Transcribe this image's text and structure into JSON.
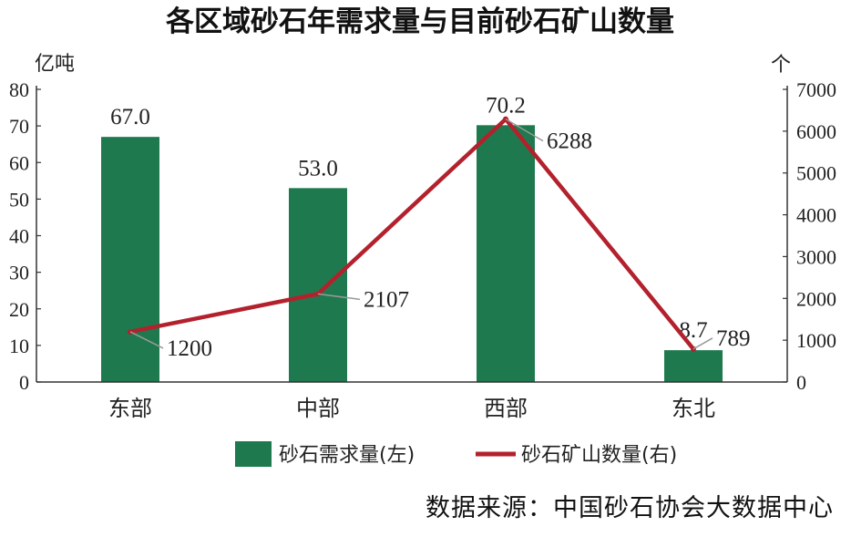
{
  "chart_data": {
    "type": "bar",
    "title": "各区域砂石年需求量与目前砂石矿山数量",
    "categories": [
      "东部",
      "中部",
      "西部",
      "东北"
    ],
    "left_unit": "亿吨",
    "right_unit": "个",
    "left_ylim": [
      0,
      80
    ],
    "left_ticks": [
      0,
      10,
      20,
      30,
      40,
      50,
      60,
      70,
      80
    ],
    "right_ylim": [
      0,
      7000
    ],
    "right_ticks": [
      0,
      1000,
      2000,
      3000,
      4000,
      5000,
      6000,
      7000
    ],
    "series": [
      {
        "name": "砂石需求量(左)",
        "type": "bar",
        "axis": "left",
        "values": [
          67.0,
          53.0,
          70.2,
          8.7
        ],
        "labels": [
          "67.0",
          "53.0",
          "70.2",
          "8.7"
        ],
        "color": "#1e7a4e"
      },
      {
        "name": "砂石矿山数量(右)",
        "type": "line",
        "axis": "right",
        "values": [
          1200,
          2107,
          6288,
          789
        ],
        "labels": [
          "1200",
          "2107",
          "6288",
          "789"
        ],
        "color": "#b3212d"
      }
    ],
    "legend_position": "bottom",
    "grid": false
  },
  "source": "数据来源：中国砂石协会大数据中心"
}
